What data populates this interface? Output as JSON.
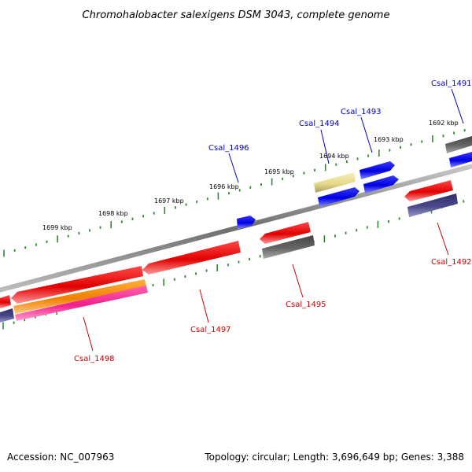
{
  "title": "Chromohalobacter salexigens DSM 3043, complete genome",
  "footer": {
    "accession": "Accession: NC_007963",
    "summary": "Topology: circular; Length: 3,696,649 bp; Genes: 3,388"
  },
  "kbp_labels": [
    "1699 kbp",
    "1698 kbp",
    "1697 kbp",
    "1696 kbp",
    "1695 kbp",
    "1694 kbp",
    "1693 kbp",
    "1692 kbp"
  ],
  "genes_top": [
    "Csal_1496",
    "Csal_1494",
    "Csal_1493",
    "Csal_1491"
  ],
  "genes_bottom": [
    "Csal_1498",
    "Csal_1497",
    "Csal_1495",
    "Csal_1492"
  ],
  "colors": {
    "backbone": "#808080",
    "tick": "#2e8b2e",
    "cds_forward": "#0000ee",
    "cds_reverse": "#ee0000",
    "gray_feature": "#555555",
    "navy_feature": "#3a3a7a",
    "orange_feature": "#ff8c00",
    "pink_feature": "#ff2a9a",
    "khaki_feature": "#e8dc8a",
    "label_blue": "#0000cc",
    "label_red": "#cc0000"
  }
}
